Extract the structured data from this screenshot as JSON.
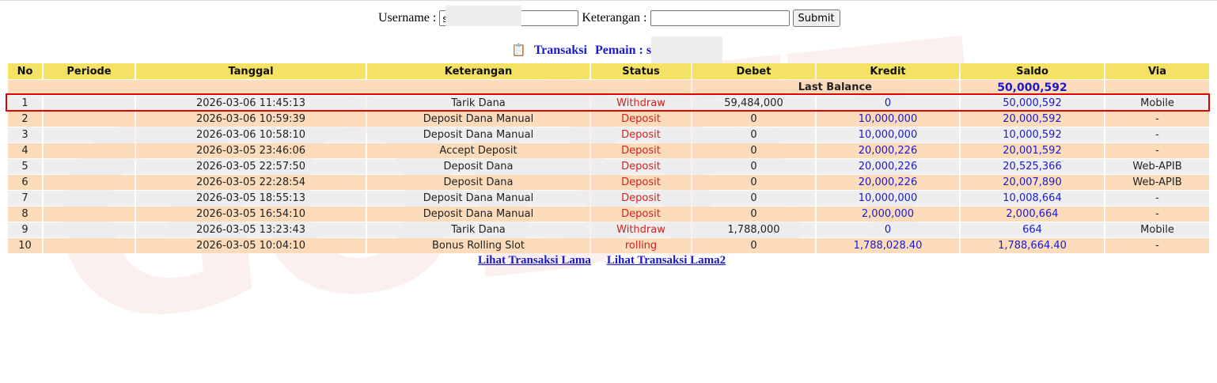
{
  "form": {
    "username_label": "Username :",
    "username_value": "s",
    "keterangan_label": "Keterangan :",
    "keterangan_value": "",
    "submit_label": "Submit"
  },
  "title": {
    "icon": "clipboard-icon",
    "transaksi": "Transaksi",
    "pemain": "Pemain : sa"
  },
  "table": {
    "headers": [
      "No",
      "Periode",
      "Tanggal",
      "Keterangan",
      "Status",
      "Debet",
      "Kredit",
      "Saldo",
      "Via"
    ],
    "last_balance_label": "Last Balance",
    "last_balance_value": "50,000,592",
    "rows": [
      {
        "no": "1",
        "periode": "",
        "tanggal": "2026-03-06 11:45:13",
        "keterangan": "Tarik Dana",
        "status": "Withdraw",
        "debet": "59,484,000",
        "kredit": "0",
        "saldo": "50,000,592",
        "via": "Mobile"
      },
      {
        "no": "2",
        "periode": "",
        "tanggal": "2026-03-06 10:59:39",
        "keterangan": "Deposit Dana Manual",
        "status": "Deposit",
        "debet": "0",
        "kredit": "10,000,000",
        "saldo": "20,000,592",
        "via": "-"
      },
      {
        "no": "3",
        "periode": "",
        "tanggal": "2026-03-06 10:58:10",
        "keterangan": "Deposit Dana Manual",
        "status": "Deposit",
        "debet": "0",
        "kredit": "10,000,000",
        "saldo": "10,000,592",
        "via": "-"
      },
      {
        "no": "4",
        "periode": "",
        "tanggal": "2026-03-05 23:46:06",
        "keterangan": "Accept Deposit",
        "status": "Deposit",
        "debet": "0",
        "kredit": "20,000,226",
        "saldo": "20,001,592",
        "via": "-"
      },
      {
        "no": "5",
        "periode": "",
        "tanggal": "2026-03-05 22:57:50",
        "keterangan": "Deposit Dana",
        "status": "Deposit",
        "debet": "0",
        "kredit": "20,000,226",
        "saldo": "20,525,366",
        "via": "Web-APIB"
      },
      {
        "no": "6",
        "periode": "",
        "tanggal": "2026-03-05 22:28:54",
        "keterangan": "Deposit Dana",
        "status": "Deposit",
        "debet": "0",
        "kredit": "20,000,226",
        "saldo": "20,007,890",
        "via": "Web-APIB"
      },
      {
        "no": "7",
        "periode": "",
        "tanggal": "2026-03-05 18:55:13",
        "keterangan": "Deposit Dana Manual",
        "status": "Deposit",
        "debet": "0",
        "kredit": "10,000,000",
        "saldo": "10,008,664",
        "via": "-"
      },
      {
        "no": "8",
        "periode": "",
        "tanggal": "2026-03-05 16:54:10",
        "keterangan": "Deposit Dana Manual",
        "status": "Deposit",
        "debet": "0",
        "kredit": "2,000,000",
        "saldo": "2,000,664",
        "via": "-"
      },
      {
        "no": "9",
        "periode": "",
        "tanggal": "2026-03-05 13:23:43",
        "keterangan": "Tarik Dana",
        "status": "Withdraw",
        "debet": "1,788,000",
        "kredit": "0",
        "saldo": "664",
        "via": "Mobile"
      },
      {
        "no": "10",
        "periode": "",
        "tanggal": "2026-03-05 10:04:10",
        "keterangan": "Bonus Rolling Slot",
        "status": "rolling",
        "debet": "0",
        "kredit": "1,788,028.40",
        "saldo": "1,788,664.40",
        "via": "-"
      }
    ]
  },
  "links": [
    "Lihat Transaksi Lama",
    "Lihat Transaksi Lama2"
  ],
  "colors": {
    "header": "#f3e264",
    "row_even": "#fcd8b4",
    "row_odd": "#ececec",
    "status": "#d42020",
    "link": "#1a1acc",
    "highlight": "#e00000"
  }
}
